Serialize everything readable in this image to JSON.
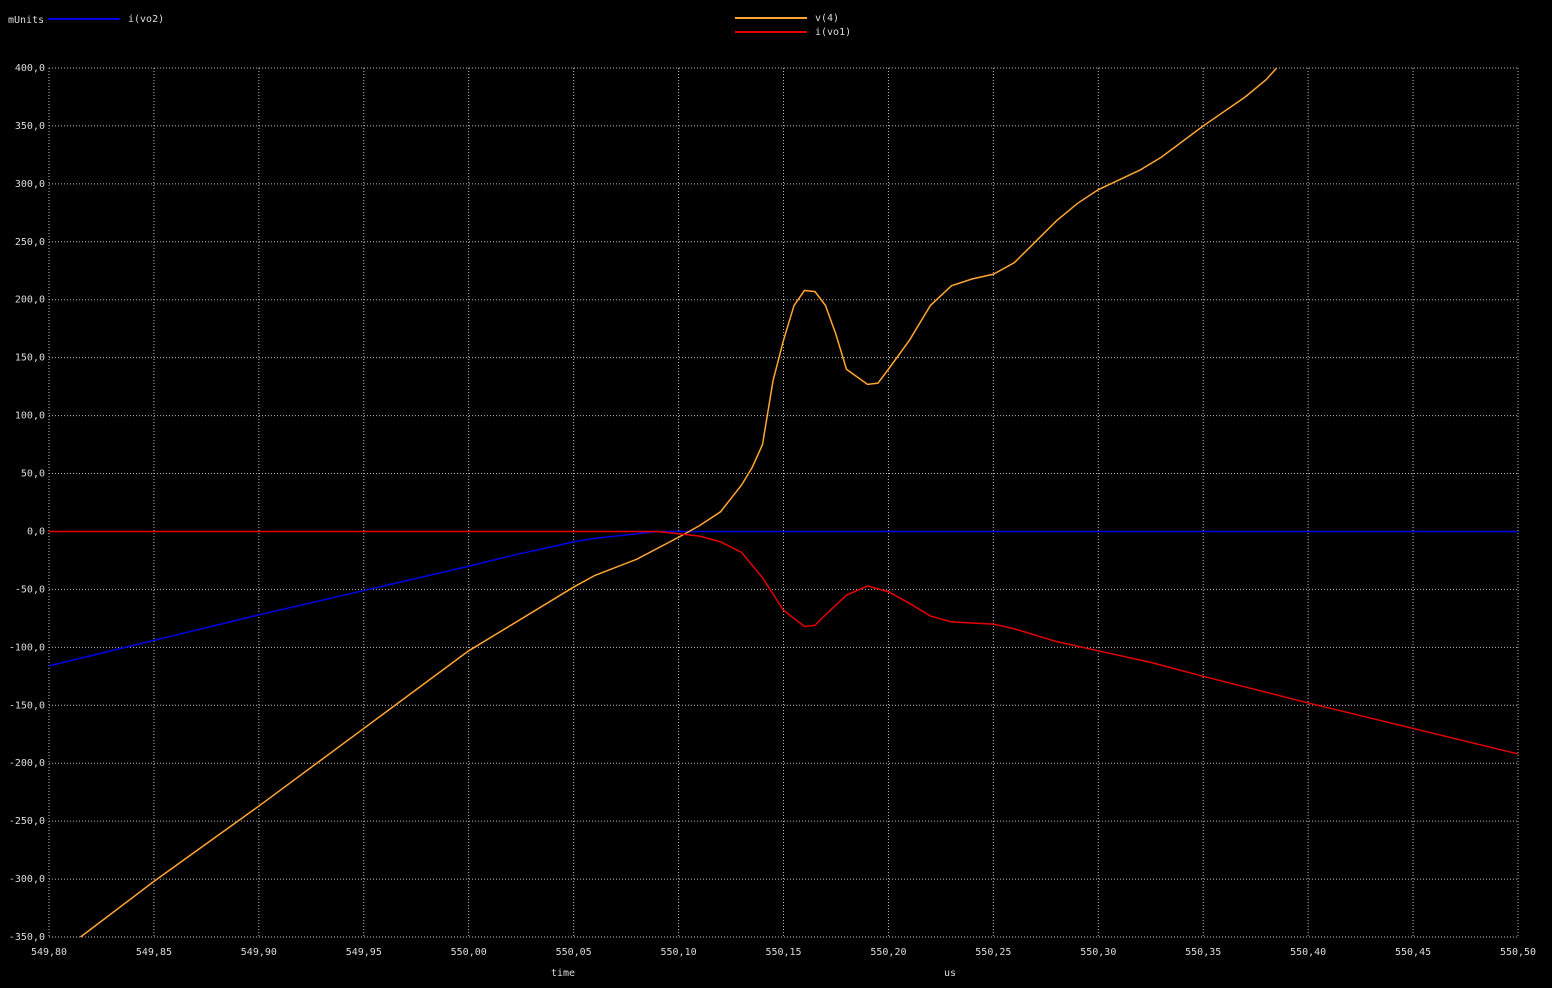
{
  "chart_data": {
    "type": "line",
    "y_unit_label": "mUnits",
    "x_label": "time",
    "x_unit_label": "us",
    "xlim": [
      549.8,
      550.5
    ],
    "ylim": [
      -350,
      400
    ],
    "grid": true,
    "xticks": [
      {
        "value": 549.8,
        "label": "549,80"
      },
      {
        "value": 549.85,
        "label": "549,85"
      },
      {
        "value": 549.9,
        "label": "549,90"
      },
      {
        "value": 549.95,
        "label": "549,95"
      },
      {
        "value": 550.0,
        "label": "550,00"
      },
      {
        "value": 550.05,
        "label": "550,05"
      },
      {
        "value": 550.1,
        "label": "550,10"
      },
      {
        "value": 550.15,
        "label": "550,15"
      },
      {
        "value": 550.2,
        "label": "550,20"
      },
      {
        "value": 550.25,
        "label": "550,25"
      },
      {
        "value": 550.3,
        "label": "550,30"
      },
      {
        "value": 550.35,
        "label": "550,35"
      },
      {
        "value": 550.4,
        "label": "550,40"
      },
      {
        "value": 550.45,
        "label": "550,45"
      },
      {
        "value": 550.5,
        "label": "550,50"
      }
    ],
    "yticks": [
      {
        "value": 400,
        "label": "400,0"
      },
      {
        "value": 350,
        "label": "350,0"
      },
      {
        "value": 300,
        "label": "300,0"
      },
      {
        "value": 250,
        "label": "250,0"
      },
      {
        "value": 200,
        "label": "200,0"
      },
      {
        "value": 150,
        "label": "150,0"
      },
      {
        "value": 100,
        "label": "100,0"
      },
      {
        "value": 50,
        "label": "50,0"
      },
      {
        "value": 0,
        "label": "0,0"
      },
      {
        "value": -50,
        "label": "-50,0"
      },
      {
        "value": -100,
        "label": "-100,0"
      },
      {
        "value": -150,
        "label": "-150,0"
      },
      {
        "value": -200,
        "label": "-200,0"
      },
      {
        "value": -250,
        "label": "-250,0"
      },
      {
        "value": -300,
        "label": "-300,0"
      },
      {
        "value": -350,
        "label": "-350,0"
      }
    ],
    "series": [
      {
        "name": "i(vo2)",
        "color": "#0000e6",
        "x": [
          549.8,
          549.85,
          549.9,
          549.95,
          550.0,
          550.02,
          550.04,
          550.05,
          550.06,
          550.08,
          550.09,
          550.2,
          550.3,
          550.4,
          550.5
        ],
        "values": [
          -116,
          -94,
          -72,
          -51,
          -30,
          -21,
          -13,
          -9,
          -6,
          -2,
          0,
          0,
          0,
          0,
          0
        ]
      },
      {
        "name": "v(4)",
        "color": "#ffa530",
        "x": [
          549.815,
          549.85,
          549.9,
          549.95,
          550.0,
          550.05,
          550.06,
          550.08,
          550.1,
          550.11,
          550.12,
          550.13,
          550.135,
          550.14,
          550.145,
          550.15,
          550.155,
          550.16,
          550.165,
          550.17,
          550.175,
          550.18,
          550.19,
          550.195,
          550.2,
          550.21,
          550.22,
          550.23,
          550.24,
          550.25,
          550.26,
          550.27,
          550.28,
          550.29,
          550.3,
          550.32,
          550.33,
          550.35,
          550.37,
          550.38,
          550.385
        ],
        "values": [
          -350,
          -302,
          -237,
          -170,
          -103,
          -48,
          -38,
          -24,
          -5,
          5,
          17,
          40,
          55,
          75,
          130,
          165,
          195,
          208,
          207,
          195,
          170,
          140,
          127,
          128,
          140,
          165,
          195,
          212,
          218,
          222,
          232,
          250,
          268,
          283,
          295,
          312,
          323,
          350,
          375,
          390,
          400
        ]
      },
      {
        "name": "i(vo1)",
        "color": "#e60000",
        "x": [
          549.8,
          549.9,
          550.0,
          550.09,
          550.1,
          550.11,
          550.12,
          550.13,
          550.14,
          550.15,
          550.16,
          550.165,
          550.17,
          550.18,
          550.19,
          550.2,
          550.21,
          550.22,
          550.23,
          550.25,
          550.26,
          550.28,
          550.3,
          550.325,
          550.35,
          550.4,
          550.45,
          550.5
        ],
        "values": [
          0,
          0,
          0,
          0,
          -2,
          -4,
          -9,
          -18,
          -40,
          -68,
          -82,
          -81,
          -72,
          -55,
          -47,
          -52,
          -62,
          -73,
          -78,
          -80,
          -84,
          -95,
          -103,
          -113,
          -125,
          -148,
          -170,
          -192
        ]
      }
    ]
  }
}
